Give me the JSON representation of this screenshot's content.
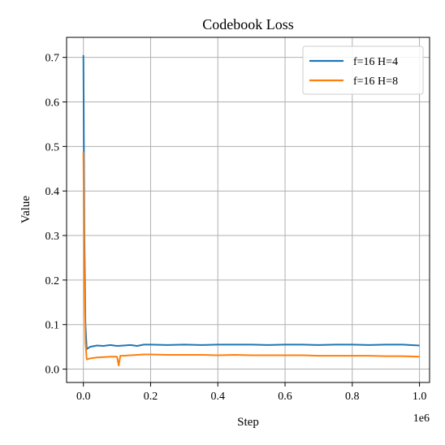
{
  "chart_data": {
    "type": "line",
    "title": "Codebook Loss",
    "xlabel": "Step",
    "ylabel": "Value",
    "x_offset_label": "1e6",
    "xlim": [
      -0.05,
      1.03
    ],
    "ylim": [
      -0.03,
      0.745
    ],
    "x_ticks": [
      0.0,
      0.2,
      0.4,
      0.6,
      0.8,
      1.0
    ],
    "x_tick_labels": [
      "0.0",
      "0.2",
      "0.4",
      "0.6",
      "0.8",
      "1.0"
    ],
    "y_ticks": [
      0.0,
      0.1,
      0.2,
      0.3,
      0.4,
      0.5,
      0.6,
      0.7
    ],
    "y_tick_labels": [
      "0.0",
      "0.1",
      "0.2",
      "0.3",
      "0.4",
      "0.5",
      "0.6",
      "0.7"
    ],
    "grid": true,
    "legend_position": "top-right",
    "series": [
      {
        "name": "f=16 H=4",
        "color": "#1f77b4",
        "x": [
          0.0,
          0.003,
          0.006,
          0.01,
          0.02,
          0.04,
          0.06,
          0.08,
          0.1,
          0.12,
          0.14,
          0.16,
          0.18,
          0.2,
          0.25,
          0.3,
          0.35,
          0.4,
          0.45,
          0.5,
          0.55,
          0.6,
          0.65,
          0.7,
          0.75,
          0.8,
          0.85,
          0.9,
          0.95,
          1.0
        ],
        "y": [
          0.705,
          0.3,
          0.1,
          0.045,
          0.05,
          0.053,
          0.052,
          0.054,
          0.052,
          0.053,
          0.054,
          0.052,
          0.055,
          0.055,
          0.054,
          0.055,
          0.054,
          0.055,
          0.055,
          0.055,
          0.054,
          0.055,
          0.055,
          0.054,
          0.055,
          0.055,
          0.054,
          0.055,
          0.055,
          0.053
        ]
      },
      {
        "name": "f=16 H=8",
        "color": "#ff7f0e",
        "x": [
          0.0,
          0.003,
          0.006,
          0.01,
          0.02,
          0.04,
          0.06,
          0.08,
          0.1,
          0.105,
          0.11,
          0.12,
          0.14,
          0.16,
          0.18,
          0.2,
          0.25,
          0.3,
          0.35,
          0.4,
          0.45,
          0.5,
          0.55,
          0.6,
          0.65,
          0.7,
          0.75,
          0.8,
          0.85,
          0.9,
          0.95,
          1.0
        ],
        "y": [
          0.487,
          0.2,
          0.06,
          0.022,
          0.024,
          0.026,
          0.027,
          0.028,
          0.028,
          0.008,
          0.03,
          0.03,
          0.031,
          0.032,
          0.033,
          0.033,
          0.032,
          0.032,
          0.032,
          0.031,
          0.032,
          0.031,
          0.031,
          0.031,
          0.031,
          0.03,
          0.03,
          0.03,
          0.03,
          0.029,
          0.029,
          0.028
        ]
      }
    ]
  }
}
